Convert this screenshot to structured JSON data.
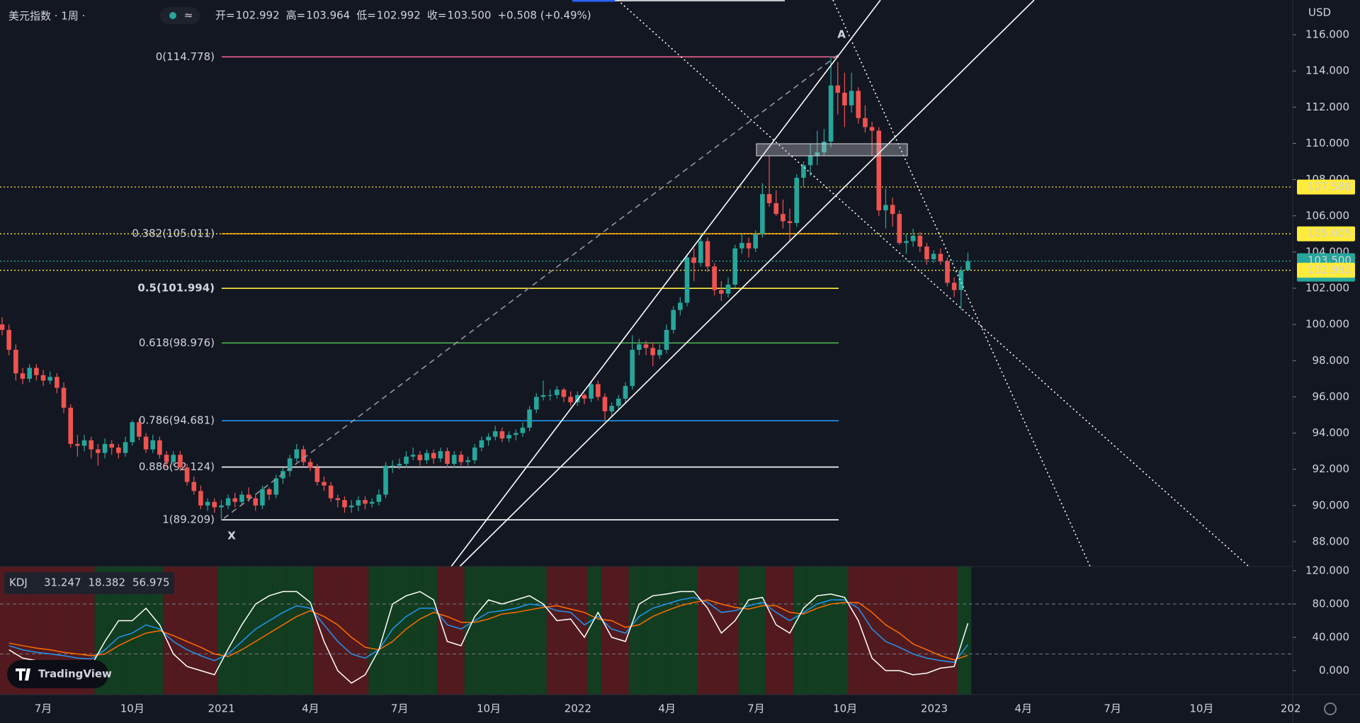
{
  "chart_data": {
    "type": "candlestick",
    "title": "美元指数 · 1周 ·",
    "currency": "USD",
    "ohlc_header": [
      {
        "label": "开=",
        "value": "102.992"
      },
      {
        "label": "高=",
        "value": "103.964"
      },
      {
        "label": "低=",
        "value": "102.992"
      },
      {
        "label": "收=",
        "value": "103.500"
      }
    ],
    "change": "+0.508 (+0.49%)",
    "up_color": "#26a69a",
    "down_color": "#ef5350",
    "ylim": [
      86.63,
      117.92
    ],
    "yticks": [
      {
        "value": 88,
        "label": "88.000"
      },
      {
        "value": 90,
        "label": "90.000"
      },
      {
        "value": 92,
        "label": "92.000"
      },
      {
        "value": 94,
        "label": "94.000"
      },
      {
        "value": 96,
        "label": "96.000"
      },
      {
        "value": 98,
        "label": "98.000"
      },
      {
        "value": 100,
        "label": "100.000"
      },
      {
        "value": 102,
        "label": "102.000"
      },
      {
        "value": 104,
        "label": "104.000"
      },
      {
        "value": 106,
        "label": "106.000"
      },
      {
        "value": 108,
        "label": "108.000"
      },
      {
        "value": 110,
        "label": "110.000"
      },
      {
        "value": 112,
        "label": "112.000"
      },
      {
        "value": 114,
        "label": "114.000"
      },
      {
        "value": 116,
        "label": "116.000"
      }
    ],
    "time_labels": [
      "7月",
      "10月",
      "2021",
      "4月",
      "7月",
      "10月",
      "2022",
      "4月",
      "7月",
      "10月",
      "2023",
      "4月",
      "7月",
      "10月",
      "202"
    ],
    "candles": [
      [
        100.0,
        100.4,
        99.4,
        99.7
      ],
      [
        99.7,
        100.0,
        98.3,
        98.6
      ],
      [
        98.6,
        98.9,
        96.9,
        97.3
      ],
      [
        97.3,
        97.6,
        96.7,
        97.0
      ],
      [
        97.0,
        97.8,
        96.8,
        97.6
      ],
      [
        97.6,
        97.8,
        96.9,
        97.2
      ],
      [
        97.2,
        97.5,
        96.6,
        96.9
      ],
      [
        96.9,
        97.4,
        96.7,
        97.1
      ],
      [
        97.1,
        97.3,
        96.2,
        96.5
      ],
      [
        96.5,
        96.8,
        95.1,
        95.4
      ],
      [
        95.4,
        95.6,
        93.2,
        93.4
      ],
      [
        93.4,
        93.9,
        92.7,
        93.3
      ],
      [
        93.3,
        93.9,
        93.0,
        93.6
      ],
      [
        93.6,
        93.8,
        92.6,
        93.1
      ],
      [
        93.1,
        93.4,
        92.2,
        92.9
      ],
      [
        92.9,
        93.7,
        92.6,
        93.4
      ],
      [
        93.4,
        93.6,
        92.8,
        93.2
      ],
      [
        93.2,
        93.4,
        92.6,
        92.9
      ],
      [
        92.9,
        93.8,
        92.7,
        93.5
      ],
      [
        93.5,
        94.7,
        93.3,
        94.6
      ],
      [
        94.6,
        94.8,
        93.6,
        93.8
      ],
      [
        93.8,
        94.0,
        92.9,
        93.1
      ],
      [
        93.1,
        93.9,
        92.9,
        93.6
      ],
      [
        93.6,
        93.8,
        92.6,
        92.8
      ],
      [
        92.8,
        93.0,
        92.1,
        92.4
      ],
      [
        92.4,
        93.0,
        92.2,
        92.8
      ],
      [
        92.8,
        93.0,
        91.9,
        92.1
      ],
      [
        92.1,
        92.3,
        91.1,
        91.3
      ],
      [
        91.3,
        91.6,
        90.6,
        90.8
      ],
      [
        90.8,
        91.1,
        89.8,
        90.0
      ],
      [
        90.0,
        90.4,
        89.7,
        90.2
      ],
      [
        90.2,
        90.4,
        89.6,
        89.9
      ],
      [
        89.9,
        90.3,
        89.2,
        90.0
      ],
      [
        90.0,
        90.6,
        89.8,
        90.4
      ],
      [
        90.4,
        90.7,
        89.9,
        90.2
      ],
      [
        90.2,
        90.8,
        90.0,
        90.6
      ],
      [
        90.6,
        91.0,
        90.2,
        90.4
      ],
      [
        90.4,
        90.6,
        89.7,
        90.0
      ],
      [
        90.0,
        91.1,
        89.8,
        90.9
      ],
      [
        90.9,
        91.0,
        90.3,
        90.6
      ],
      [
        90.6,
        91.7,
        90.4,
        91.5
      ],
      [
        91.5,
        92.1,
        91.2,
        91.9
      ],
      [
        91.9,
        92.8,
        91.6,
        92.6
      ],
      [
        92.6,
        93.4,
        92.4,
        93.1
      ],
      [
        93.1,
        93.3,
        92.2,
        92.4
      ],
      [
        92.4,
        92.6,
        91.9,
        92.1
      ],
      [
        92.1,
        92.3,
        91.1,
        91.3
      ],
      [
        91.3,
        91.6,
        90.8,
        91.1
      ],
      [
        91.1,
        91.3,
        90.2,
        90.4
      ],
      [
        90.4,
        90.6,
        89.9,
        90.3
      ],
      [
        90.3,
        90.5,
        89.6,
        89.9
      ],
      [
        89.9,
        90.3,
        89.6,
        90.0
      ],
      [
        90.0,
        90.5,
        89.7,
        90.3
      ],
      [
        90.3,
        90.5,
        89.8,
        90.1
      ],
      [
        90.1,
        90.4,
        89.9,
        90.2
      ],
      [
        90.2,
        90.9,
        90.0,
        90.6
      ],
      [
        90.6,
        92.4,
        90.4,
        92.2
      ],
      [
        92.2,
        92.5,
        91.8,
        92.2
      ],
      [
        92.2,
        92.6,
        92.0,
        92.3
      ],
      [
        92.3,
        93.0,
        92.1,
        92.7
      ],
      [
        92.7,
        93.2,
        92.5,
        92.8
      ],
      [
        92.8,
        93.0,
        92.2,
        92.5
      ],
      [
        92.5,
        93.1,
        92.3,
        92.9
      ],
      [
        92.9,
        93.1,
        92.3,
        92.6
      ],
      [
        92.6,
        93.2,
        92.4,
        93.0
      ],
      [
        93.0,
        93.2,
        92.1,
        92.3
      ],
      [
        92.3,
        93.0,
        92.1,
        92.8
      ],
      [
        92.8,
        93.0,
        92.2,
        92.4
      ],
      [
        92.4,
        92.7,
        92.2,
        92.5
      ],
      [
        92.5,
        93.4,
        92.3,
        93.2
      ],
      [
        93.2,
        93.8,
        93.0,
        93.6
      ],
      [
        93.6,
        94.0,
        93.3,
        93.8
      ],
      [
        93.8,
        94.4,
        93.6,
        94.1
      ],
      [
        94.1,
        94.3,
        93.5,
        93.7
      ],
      [
        93.7,
        94.1,
        93.5,
        93.9
      ],
      [
        93.9,
        94.2,
        93.6,
        94.0
      ],
      [
        94.0,
        94.6,
        93.8,
        94.3
      ],
      [
        94.3,
        95.5,
        94.1,
        95.3
      ],
      [
        95.3,
        96.2,
        95.1,
        96.0
      ],
      [
        96.0,
        96.9,
        95.8,
        96.1
      ],
      [
        96.1,
        96.4,
        95.8,
        96.1
      ],
      [
        96.1,
        96.6,
        95.9,
        96.4
      ],
      [
        96.4,
        96.5,
        95.7,
        96.0
      ],
      [
        96.0,
        96.3,
        95.5,
        95.7
      ],
      [
        95.7,
        96.3,
        95.5,
        96.1
      ],
      [
        96.1,
        96.2,
        95.6,
        95.9
      ],
      [
        95.9,
        96.9,
        95.7,
        96.7
      ],
      [
        96.7,
        96.9,
        95.8,
        96.0
      ],
      [
        96.0,
        96.2,
        94.7,
        95.2
      ],
      [
        95.2,
        95.7,
        94.9,
        95.5
      ],
      [
        95.5,
        96.1,
        95.3,
        95.9
      ],
      [
        95.9,
        96.8,
        95.7,
        96.6
      ],
      [
        96.6,
        99.4,
        96.4,
        98.6
      ],
      [
        98.6,
        99.2,
        98.3,
        98.9
      ],
      [
        98.9,
        99.1,
        98.3,
        98.7
      ],
      [
        98.7,
        99.0,
        97.7,
        98.3
      ],
      [
        98.3,
        98.9,
        98.1,
        98.6
      ],
      [
        98.6,
        100.0,
        98.4,
        99.7
      ],
      [
        99.7,
        101.0,
        99.5,
        100.8
      ],
      [
        100.8,
        101.5,
        100.5,
        101.2
      ],
      [
        101.2,
        103.9,
        101.0,
        103.7
      ],
      [
        103.7,
        104.2,
        102.4,
        103.4
      ],
      [
        103.4,
        105.0,
        103.2,
        104.6
      ],
      [
        104.6,
        104.8,
        102.9,
        103.2
      ],
      [
        103.2,
        103.4,
        101.6,
        101.9
      ],
      [
        101.9,
        102.4,
        101.3,
        101.7
      ],
      [
        101.7,
        102.6,
        101.5,
        102.2
      ],
      [
        102.2,
        104.4,
        102.0,
        104.2
      ],
      [
        104.2,
        105.0,
        103.9,
        104.5
      ],
      [
        104.5,
        104.8,
        103.7,
        104.2
      ],
      [
        104.2,
        105.2,
        104.0,
        105.0
      ],
      [
        105.0,
        107.8,
        104.8,
        107.2
      ],
      [
        107.2,
        109.3,
        106.5,
        106.7
      ],
      [
        106.7,
        107.4,
        106.0,
        106.1
      ],
      [
        106.1,
        106.9,
        105.3,
        105.7
      ],
      [
        105.7,
        106.4,
        104.6,
        105.6
      ],
      [
        105.6,
        108.3,
        105.4,
        108.1
      ],
      [
        108.1,
        109.0,
        107.6,
        108.8
      ],
      [
        108.8,
        110.0,
        108.2,
        109.3
      ],
      [
        109.3,
        110.7,
        108.8,
        109.5
      ],
      [
        109.5,
        110.8,
        109.3,
        110.1
      ],
      [
        110.1,
        114.8,
        109.8,
        113.2
      ],
      [
        113.2,
        114.5,
        111.6,
        112.8
      ],
      [
        112.8,
        113.9,
        110.9,
        112.1
      ],
      [
        112.1,
        113.9,
        111.7,
        112.9
      ],
      [
        112.9,
        113.1,
        111.1,
        111.4
      ],
      [
        111.4,
        112.1,
        110.6,
        110.9
      ],
      [
        110.9,
        111.2,
        109.3,
        110.7
      ],
      [
        110.7,
        110.9,
        106.0,
        106.3
      ],
      [
        106.3,
        107.5,
        105.3,
        106.6
      ],
      [
        106.6,
        107.0,
        105.4,
        106.1
      ],
      [
        106.1,
        106.3,
        104.4,
        104.5
      ],
      [
        104.5,
        105.0,
        103.9,
        104.6
      ],
      [
        104.6,
        105.3,
        104.3,
        104.9
      ],
      [
        104.9,
        105.1,
        104.0,
        104.3
      ],
      [
        104.3,
        104.5,
        103.3,
        103.6
      ],
      [
        103.6,
        104.1,
        103.4,
        103.9
      ],
      [
        103.9,
        104.2,
        103.3,
        103.5
      ],
      [
        103.5,
        103.7,
        102.1,
        102.3
      ],
      [
        102.3,
        102.6,
        101.5,
        101.9
      ],
      [
        101.9,
        103.2,
        100.8,
        102.992
      ],
      [
        102.992,
        103.964,
        102.992,
        103.5
      ]
    ],
    "fib_levels": [
      {
        "label": "0(114.778)",
        "value": 114.778,
        "color": "#f06292"
      },
      {
        "label": "0.382(105.011)",
        "value": 105.011,
        "color": "#ff9800"
      },
      {
        "label": "0.5(101.994)",
        "value": 101.994,
        "color": "#ffeb3b"
      },
      {
        "label": "0.618(98.976)",
        "value": 98.976,
        "color": "#4caf50"
      },
      {
        "label": "0.786(94.681)",
        "value": 94.681,
        "color": "#2196f3"
      },
      {
        "label": "0.886(92.124)",
        "value": 92.124,
        "color": "#ffffff"
      },
      {
        "label": "1(89.209)",
        "value": 89.209,
        "color": "#ffffff"
      }
    ],
    "annotations": [
      "A",
      "X"
    ],
    "price_labels": [
      {
        "value": 107.588,
        "label": "107.588",
        "color": "#ffeb3b",
        "text_color": "#131722"
      },
      {
        "value": 105.005,
        "label": "105.005",
        "color": "#ffeb3b",
        "text_color": "#131722"
      },
      {
        "value": 103.5,
        "label": "103.500",
        "sub": "3d 4h",
        "color": "#26a69a",
        "text_color": "#ffffff"
      },
      {
        "value": 102.992,
        "label": "102.992",
        "color": "#ffeb3b",
        "text_color": "#131722"
      }
    ],
    "indicator": {
      "name": "KDJ",
      "legend_values": [
        "31.247",
        "18.382",
        "56.975"
      ],
      "ylim": [
        -28.9,
        125.1
      ],
      "yticks": [
        {
          "value": 120,
          "label": "120.000"
        },
        {
          "value": 80,
          "label": "80.000"
        },
        {
          "value": 40,
          "label": "40.000"
        },
        {
          "value": 0,
          "label": "0.000"
        }
      ],
      "levels": [
        80,
        20
      ],
      "series": [
        {
          "color": "#2196f3",
          "values": [
            30,
            25,
            22,
            20,
            18,
            15,
            14,
            25,
            40,
            45,
            55,
            50,
            35,
            25,
            18,
            12,
            20,
            35,
            50,
            60,
            70,
            78,
            75,
            55,
            35,
            20,
            15,
            25,
            50,
            65,
            75,
            75,
            55,
            50,
            60,
            70,
            72,
            75,
            80,
            78,
            72,
            70,
            55,
            65,
            50,
            45,
            65,
            75,
            80,
            85,
            88,
            82,
            70,
            72,
            78,
            82,
            70,
            60,
            70,
            80,
            85,
            85,
            75,
            50,
            35,
            28,
            20,
            15,
            12,
            10,
            31.247
          ]
        },
        {
          "color": "#ff6d00",
          "values": [
            33,
            30,
            27,
            25,
            22,
            20,
            18,
            20,
            30,
            38,
            45,
            48,
            42,
            35,
            28,
            20,
            17,
            25,
            35,
            45,
            55,
            65,
            72,
            65,
            55,
            40,
            28,
            25,
            35,
            50,
            62,
            70,
            65,
            58,
            58,
            62,
            68,
            70,
            73,
            76,
            78,
            74,
            70,
            62,
            60,
            52,
            55,
            65,
            72,
            78,
            82,
            85,
            80,
            76,
            74,
            78,
            78,
            70,
            68,
            75,
            80,
            82,
            82,
            70,
            55,
            45,
            32,
            25,
            18,
            13,
            18.382
          ]
        },
        {
          "color": "#ffffff",
          "values": [
            25,
            15,
            12,
            10,
            10,
            5,
            6,
            35,
            60,
            60,
            75,
            55,
            20,
            5,
            0,
            -5,
            26,
            55,
            80,
            90,
            95,
            95,
            82,
            35,
            0,
            -15,
            -5,
            25,
            80,
            90,
            95,
            85,
            35,
            30,
            65,
            85,
            80,
            85,
            90,
            80,
            60,
            62,
            40,
            70,
            40,
            35,
            80,
            90,
            92,
            95,
            95,
            75,
            45,
            60,
            85,
            88,
            55,
            45,
            75,
            90,
            92,
            88,
            60,
            15,
            0,
            0,
            -5,
            -3,
            3,
            5,
            56.975
          ]
        }
      ]
    },
    "brand": "TradingView"
  }
}
